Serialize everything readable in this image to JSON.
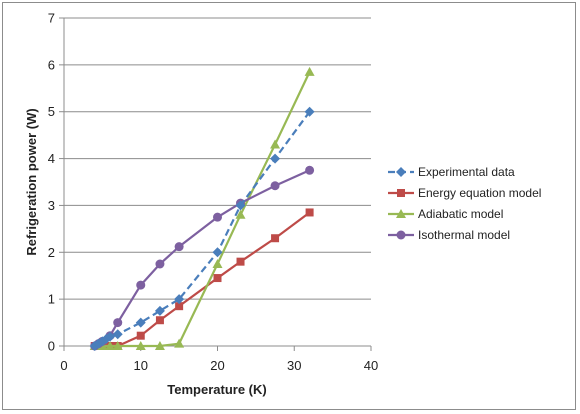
{
  "chart_data": {
    "type": "line",
    "title": "",
    "xlabel": "Temperature (K)",
    "ylabel": "Refrigeration power (W)",
    "xlim": [
      0,
      40
    ],
    "ylim": [
      0,
      7
    ],
    "x_ticks": [
      0,
      10,
      20,
      30,
      40
    ],
    "y_ticks": [
      0,
      1,
      2,
      3,
      4,
      5,
      6,
      7
    ],
    "grid": "horizontal",
    "legend_position": "right",
    "series": [
      {
        "name": "Experimental data",
        "color": "#4a7ebb",
        "marker": "diamond",
        "line_style": "dashed",
        "x": [
          4,
          4.5,
          5,
          5.5,
          6,
          7,
          10,
          12.5,
          15,
          20,
          23,
          27.5,
          32
        ],
        "y": [
          0,
          0.05,
          0.1,
          0.15,
          0.2,
          0.25,
          0.5,
          0.75,
          1.0,
          2.0,
          3.0,
          4.0,
          5.0
        ]
      },
      {
        "name": "Energy equation model",
        "color": "#be4b48",
        "marker": "square",
        "line_style": "solid",
        "x": [
          4,
          5,
          6,
          7,
          10,
          12.5,
          15,
          20,
          23,
          27.5,
          32
        ],
        "y": [
          0,
          0,
          0,
          0,
          0.22,
          0.55,
          0.85,
          1.45,
          1.8,
          2.3,
          2.85
        ]
      },
      {
        "name": "Adiabatic model",
        "color": "#98b954",
        "marker": "triangle",
        "line_style": "solid",
        "x": [
          4,
          5,
          6,
          7,
          10,
          12.5,
          15,
          20,
          23,
          27.5,
          32
        ],
        "y": [
          0,
          0,
          0,
          0,
          0,
          0,
          0.05,
          1.75,
          2.8,
          4.3,
          5.85
        ]
      },
      {
        "name": "Isothermal model",
        "color": "#7d60a0",
        "marker": "circle",
        "line_style": "solid",
        "x": [
          4,
          4.5,
          5,
          6,
          7,
          10,
          12.5,
          15,
          20,
          23,
          27.5,
          32
        ],
        "y": [
          0,
          0.05,
          0.1,
          0.22,
          0.5,
          1.3,
          1.75,
          2.12,
          2.75,
          3.05,
          3.42,
          3.75
        ]
      }
    ]
  }
}
